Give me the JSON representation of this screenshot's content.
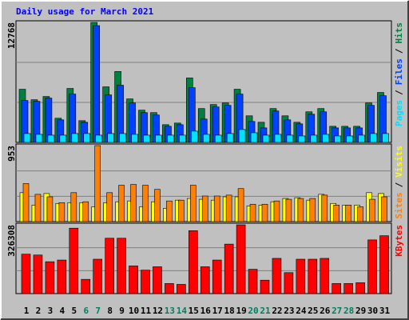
{
  "chart_data": [
    {
      "type": "bar",
      "title": "Daily usage for March 2021",
      "ylim": [
        0,
        12768
      ],
      "yticks": [
        12768
      ],
      "legend_separator": "/",
      "series": [
        {
          "name": "Hits",
          "color": "#008040",
          "values": [
            5656,
            4542,
            4885,
            2571,
            5742,
            2314,
            12768,
            5913,
            7542,
            4628,
            3428,
            3171,
            1885,
            2057,
            6856,
            3600,
            4028,
            4199,
            5656,
            2828,
            2143,
            3600,
            2828,
            2143,
            3257,
            3600,
            1714,
            1714,
            1714,
            4199,
            5313
          ]
        },
        {
          "name": "Files",
          "color": "#0040ff",
          "values": [
            4456,
            4371,
            4714,
            2400,
            5142,
            2143,
            12427,
            5056,
            6085,
            4199,
            3171,
            2914,
            1714,
            1885,
            5828,
            2485,
            3771,
            3942,
            5142,
            2228,
            1543,
            3342,
            2400,
            1971,
            3000,
            3257,
            1543,
            1543,
            1543,
            3942,
            4971
          ]
        },
        {
          "name": "Pages",
          "color": "#00e0ff",
          "values": [
            943,
            857,
            771,
            771,
            943,
            943,
            771,
            943,
            943,
            857,
            771,
            771,
            771,
            771,
            1200,
            857,
            771,
            943,
            1371,
            1028,
            771,
            857,
            771,
            686,
            771,
            857,
            686,
            686,
            771,
            943,
            943
          ]
        }
      ]
    },
    {
      "type": "bar",
      "ylim": [
        0,
        953
      ],
      "yticks": [
        953
      ],
      "legend_separator": "/",
      "series": [
        {
          "name": "Visits",
          "color": "#ffff00",
          "values": [
            363,
            207,
            352,
            228,
            238,
            238,
            186,
            238,
            249,
            259,
            186,
            249,
            166,
            269,
            290,
            280,
            269,
            311,
            311,
            197,
            207,
            249,
            290,
            300,
            269,
            342,
            228,
            207,
            207,
            363,
            352
          ]
        },
        {
          "name": "Sites",
          "color": "#ff8000",
          "values": [
            477,
            342,
            311,
            238,
            363,
            249,
            953,
            363,
            456,
            466,
            456,
            404,
            259,
            269,
            456,
            321,
            321,
            332,
            414,
            218,
            218,
            259,
            280,
            290,
            290,
            332,
            207,
            207,
            186,
            280,
            311
          ]
        }
      ]
    },
    {
      "type": "bar",
      "ylim": [
        0,
        326308
      ],
      "yticks": [
        326308
      ],
      "categories": [
        "1",
        "2",
        "3",
        "4",
        "5",
        "6",
        "7",
        "8",
        "9",
        "10",
        "11",
        "12",
        "13",
        "14",
        "15",
        "16",
        "17",
        "18",
        "19",
        "20",
        "21",
        "22",
        "23",
        "24",
        "25",
        "26",
        "27",
        "28",
        "29",
        "30",
        "31"
      ],
      "category_colors": [
        "#000000",
        "#000000",
        "#000000",
        "#000000",
        "#000000",
        "#008060",
        "#008060",
        "#000000",
        "#000000",
        "#000000",
        "#000000",
        "#000000",
        "#008060",
        "#008060",
        "#000000",
        "#000000",
        "#000000",
        "#000000",
        "#000000",
        "#008060",
        "#008060",
        "#000000",
        "#000000",
        "#000000",
        "#000000",
        "#000000",
        "#008060",
        "#008060",
        "#000000",
        "#000000",
        "#000000"
      ],
      "series": [
        {
          "name": "KBytes",
          "color": "#ff0000",
          "values": [
            187013,
            183034,
            151202,
            159160,
            310362,
            67643,
            163139,
            262613,
            262613,
            131307,
            111412,
            127328,
            47748,
            43769,
            298425,
            127328,
            159160,
            234761,
            326308,
            115391,
            63664,
            167118,
            99475,
            163139,
            163139,
            167118,
            47748,
            47748,
            51727,
            254656,
            274551
          ]
        }
      ]
    }
  ]
}
